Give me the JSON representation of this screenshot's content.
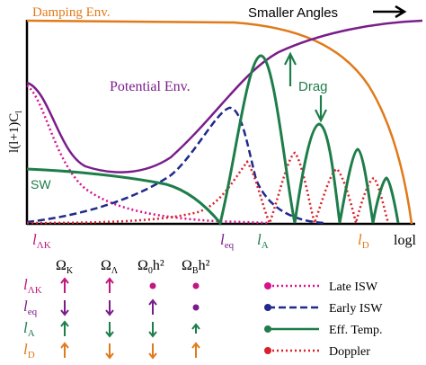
{
  "labels": {
    "damping_env": "Damping Env.",
    "smaller_angles": "Smaller Angles",
    "potential_env": "Potential Env.",
    "drag": "Drag",
    "sw": "SW",
    "ylabel": "l(l+1)C",
    "ylabel_sub": "l",
    "xticks": {
      "l_lambda_k": "l",
      "l_lambda_k_sub": "ΛK",
      "l_eq": "l",
      "l_eq_sub": "eq",
      "l_a": "l",
      "l_a_sub": "A",
      "l_d": "l",
      "l_d_sub": "D",
      "logl": "logl"
    }
  },
  "table": {
    "headers": [
      "Ω",
      "Ω",
      "Ω",
      "Ω"
    ],
    "header_subs": [
      "K",
      "Λ",
      "0",
      "B"
    ],
    "header_suffix": [
      "",
      "",
      "h²",
      "h²"
    ],
    "rows": [
      {
        "label": "l",
        "sub": "ΛK",
        "color": "#c2177e",
        "cells": [
          "up-arrow",
          "up-arrow",
          "dot",
          "dot"
        ]
      },
      {
        "label": "l",
        "sub": "eq",
        "color": "#7a1d8a",
        "cells": [
          "down-arrow",
          "down-arrow",
          "up-arrow",
          "dot"
        ]
      },
      {
        "label": "l",
        "sub": "A",
        "color": "#1e7d4a",
        "cells": [
          "up-arrow",
          "down-arrow",
          "down-arrow",
          "up-small-arrow"
        ]
      },
      {
        "label": "l",
        "sub": "D",
        "color": "#e07a1a",
        "cells": [
          "up-arrow",
          "down-arrow",
          "down-arrow",
          "up-arrow"
        ]
      }
    ]
  },
  "legend": [
    {
      "label": "Late ISW",
      "color": "#d6128f",
      "style": "dotted"
    },
    {
      "label": "Early ISW",
      "color": "#1f2a8a",
      "style": "dashed"
    },
    {
      "label": "Eff. Temp.",
      "color": "#1e7d4a",
      "style": "solid"
    },
    {
      "label": "Doppler",
      "color": "#d9202a",
      "style": "dotted"
    }
  ],
  "colors": {
    "damping": "#e07a1a",
    "potential": "#7a1d8a",
    "eff_temp": "#1e7d4a",
    "early_isw": "#1f2a8a",
    "late_isw": "#d6128f",
    "doppler": "#d9202a",
    "axis": "#000000"
  }
}
